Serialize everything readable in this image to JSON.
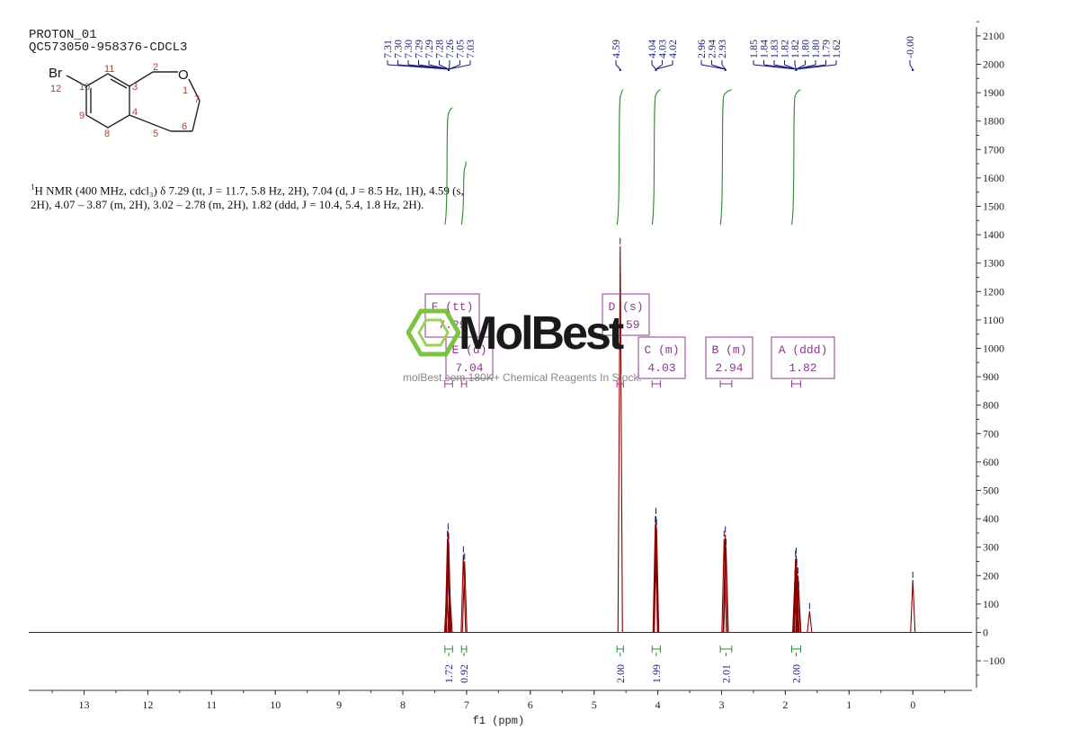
{
  "header": {
    "experiment": "PROTON_01",
    "sample": "QC573050-958376-CDCL3"
  },
  "description": {
    "sup": "1",
    "line1": "H NMR (400 MHz, cdcl₃) δ 7.29 (tt, J = 11.7, 5.8 Hz, 2H), 7.04 (d, J = 8.5 Hz, 1H), 4.59 (s,",
    "line2": "2H), 4.07 – 3.87 (m, 2H), 3.02 – 2.78 (m, 2H), 1.82 (ddd, J = 10.4, 5.4, 1.8 Hz, 2H)."
  },
  "molecule": {
    "atoms": [
      "Br",
      "O",
      "1",
      "2",
      "3",
      "4",
      "5",
      "6",
      "7",
      "8",
      "9",
      "10",
      "11",
      "12"
    ]
  },
  "watermark": {
    "logo": "MolBest",
    "tagline": "molBest.com 180K+ Chemical Reagents In Stock."
  },
  "colors": {
    "spectrum": "#8b0000",
    "integral": "#2e8b2e",
    "peak_label": "#1a1a7a",
    "multiplet": "#8b3a8b"
  },
  "chart_data": {
    "type": "line",
    "xlabel": "f1 (ppm)",
    "xlim": [
      13.9,
      -0.9
    ],
    "ylim": [
      -200,
      2150
    ],
    "x_ticks": [
      13,
      12,
      11,
      10,
      9,
      8,
      7,
      6,
      5,
      4,
      3,
      2,
      1,
      0
    ],
    "y_ticks": [
      -100,
      0,
      100,
      200,
      300,
      400,
      500,
      600,
      700,
      800,
      900,
      1000,
      1100,
      1200,
      1300,
      1400,
      1500,
      1600,
      1700,
      1800,
      1900,
      2000,
      2100
    ],
    "peak_groups": [
      {
        "labels": [
          "7.31",
          "7.30",
          "7.30",
          "7.29",
          "7.29",
          "7.28",
          "7.26",
          "7.05",
          "7.03"
        ],
        "apex": 7.28
      },
      {
        "labels": [
          "4.59"
        ],
        "apex": 4.59
      },
      {
        "labels": [
          "4.04",
          "4.03",
          "4.02"
        ],
        "apex": 4.03
      },
      {
        "labels": [
          "2.96",
          "2.94",
          "2.93"
        ],
        "apex": 2.94
      },
      {
        "labels": [
          "1.85",
          "1.84",
          "1.83",
          "1.82",
          "1.82",
          "1.80",
          "1.80",
          "1.79",
          "1.62"
        ],
        "apex": 1.83
      },
      {
        "labels": [
          "-0.00"
        ],
        "apex": 0.0
      }
    ],
    "peaks": [
      {
        "ppm": 7.31,
        "height": 150
      },
      {
        "ppm": 7.3,
        "height": 330
      },
      {
        "ppm": 7.29,
        "height": 355
      },
      {
        "ppm": 7.28,
        "height": 320
      },
      {
        "ppm": 7.26,
        "height": 130
      },
      {
        "ppm": 7.05,
        "height": 275
      },
      {
        "ppm": 7.03,
        "height": 250
      },
      {
        "ppm": 4.59,
        "height": 1360
      },
      {
        "ppm": 4.04,
        "height": 380
      },
      {
        "ppm": 4.03,
        "height": 410
      },
      {
        "ppm": 4.02,
        "height": 370
      },
      {
        "ppm": 2.96,
        "height": 330
      },
      {
        "ppm": 2.94,
        "height": 345
      },
      {
        "ppm": 2.93,
        "height": 300
      },
      {
        "ppm": 1.85,
        "height": 190
      },
      {
        "ppm": 1.84,
        "height": 260
      },
      {
        "ppm": 1.83,
        "height": 270
      },
      {
        "ppm": 1.82,
        "height": 230
      },
      {
        "ppm": 1.8,
        "height": 200
      },
      {
        "ppm": 1.79,
        "height": 150
      },
      {
        "ppm": 1.62,
        "height": 75
      },
      {
        "ppm": 0.0,
        "height": 185
      }
    ],
    "integrals": [
      {
        "from": 7.34,
        "to": 7.22,
        "value": "1.72"
      },
      {
        "from": 7.08,
        "to": 7.0,
        "value": "0.92"
      },
      {
        "from": 4.64,
        "to": 4.54,
        "value": "2.00"
      },
      {
        "from": 4.09,
        "to": 3.96,
        "value": "1.99"
      },
      {
        "from": 3.02,
        "to": 2.84,
        "value": "2.01"
      },
      {
        "from": 1.9,
        "to": 1.76,
        "value": "2.00"
      }
    ],
    "multiplets": [
      {
        "letter": "F",
        "type": "tt",
        "shift": "7.29"
      },
      {
        "letter": "E",
        "type": "d",
        "shift": "7.04"
      },
      {
        "letter": "D",
        "type": "s",
        "shift": "4.59"
      },
      {
        "letter": "C",
        "type": "m",
        "shift": "4.03"
      },
      {
        "letter": "B",
        "type": "m",
        "shift": "2.94"
      },
      {
        "letter": "A",
        "type": "ddd",
        "shift": "1.82"
      }
    ]
  }
}
